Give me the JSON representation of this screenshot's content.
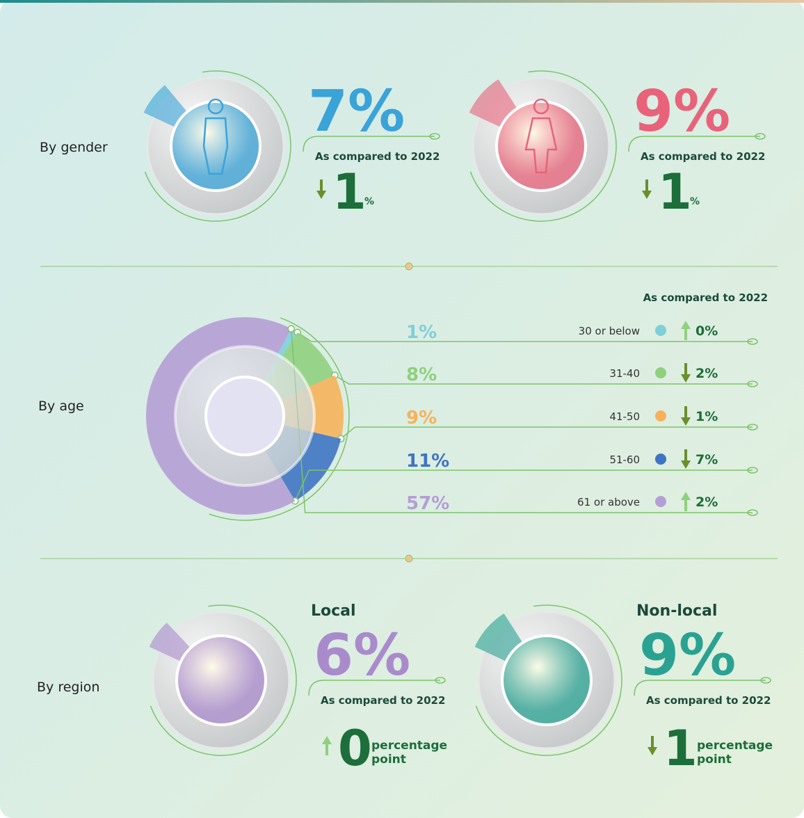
{
  "gender": {
    "label": "By gender",
    "items": [
      {
        "value": 7,
        "value_label": "7%",
        "color": "#3aa3d8",
        "compare_label": "As compared to 2022",
        "change": {
          "direction": "down",
          "value": 1,
          "unit": "%"
        }
      },
      {
        "value": 9,
        "value_label": "9%",
        "color": "#e8637a",
        "compare_label": "As compared to 2022",
        "change": {
          "direction": "down",
          "value": 1,
          "unit": "%"
        }
      }
    ]
  },
  "age": {
    "label": "By age",
    "compare_label": "As compared to 2022",
    "categories": [
      "30 or below",
      "31-40",
      "41-50",
      "51-60",
      "61 or above"
    ],
    "values": [
      1,
      8,
      9,
      11,
      57
    ],
    "value_labels": [
      "1%",
      "8%",
      "9%",
      "11%",
      "57%"
    ],
    "colors": [
      "#7fcfd8",
      "#8fd07e",
      "#f6b25a",
      "#3f74c2",
      "#b49fd4"
    ],
    "changes": [
      {
        "direction": "up",
        "value": 0,
        "label": "0%"
      },
      {
        "direction": "down",
        "value": 2,
        "label": "2%"
      },
      {
        "direction": "down",
        "value": 1,
        "label": "1%"
      },
      {
        "direction": "down",
        "value": 7,
        "label": "7%"
      },
      {
        "direction": "up",
        "value": 2,
        "label": "2%"
      }
    ]
  },
  "region": {
    "label": "By region",
    "items": [
      {
        "name": "Local",
        "value": 6,
        "value_label": "6%",
        "color": "#a98bcc",
        "compare_label": "As compared to 2022",
        "change": {
          "direction": "up",
          "value": 0,
          "unit": "percentage point"
        }
      },
      {
        "name": "Non-local",
        "value": 9,
        "value_label": "9%",
        "color": "#2aa292",
        "compare_label": "As compared to 2022",
        "change": {
          "direction": "down",
          "value": 1,
          "unit": "percentage point"
        }
      }
    ]
  }
}
